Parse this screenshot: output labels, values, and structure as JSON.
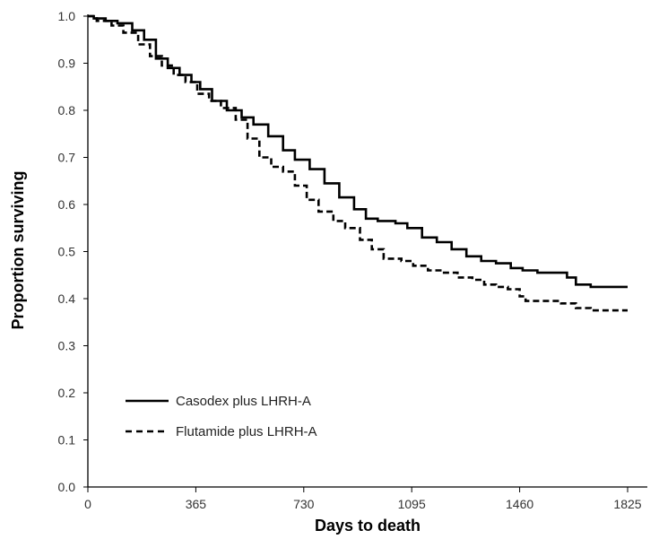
{
  "chart_data": {
    "type": "line",
    "xlabel": "Days to death",
    "ylabel": "Proportion surviving",
    "xlim": [
      0,
      1825
    ],
    "ylim": [
      0,
      1.0
    ],
    "x_ticks": [
      0,
      365,
      730,
      1095,
      1460,
      1825
    ],
    "y_ticks": [
      0.0,
      0.1,
      0.2,
      0.3,
      0.4,
      0.5,
      0.6,
      0.7,
      0.8,
      0.9,
      1.0
    ],
    "y_tick_labels": [
      "0.0",
      "0.1",
      "0.2",
      "0.3",
      "0.4",
      "0.5",
      "0.6",
      "0.7",
      "0.8",
      "0.9",
      "1.0"
    ],
    "grid": false,
    "legend_position": "bottom-left",
    "series": [
      {
        "name": "Casodex plus LHRH-A",
        "style": "solid",
        "color": "#000000",
        "x": [
          0,
          20,
          60,
          100,
          150,
          190,
          230,
          270,
          310,
          350,
          380,
          420,
          470,
          520,
          560,
          610,
          660,
          700,
          750,
          800,
          850,
          900,
          940,
          980,
          1040,
          1080,
          1130,
          1180,
          1230,
          1280,
          1330,
          1380,
          1430,
          1470,
          1520,
          1560,
          1620,
          1650,
          1700,
          1760,
          1825
        ],
        "y": [
          1.0,
          0.995,
          0.99,
          0.985,
          0.97,
          0.95,
          0.91,
          0.89,
          0.875,
          0.86,
          0.845,
          0.82,
          0.8,
          0.785,
          0.77,
          0.745,
          0.715,
          0.695,
          0.675,
          0.645,
          0.615,
          0.59,
          0.57,
          0.565,
          0.56,
          0.55,
          0.53,
          0.52,
          0.505,
          0.49,
          0.48,
          0.475,
          0.465,
          0.46,
          0.455,
          0.455,
          0.445,
          0.43,
          0.425,
          0.425,
          0.425
        ]
      },
      {
        "name": "Flutamide plus LHRH-A",
        "style": "dashed",
        "color": "#000000",
        "x": [
          0,
          30,
          80,
          120,
          170,
          210,
          250,
          290,
          330,
          370,
          410,
          450,
          500,
          540,
          580,
          620,
          660,
          700,
          740,
          780,
          830,
          870,
          920,
          960,
          1000,
          1060,
          1100,
          1150,
          1200,
          1250,
          1300,
          1340,
          1380,
          1420,
          1460,
          1480,
          1530,
          1600,
          1650,
          1700,
          1825
        ],
        "y": [
          1.0,
          0.99,
          0.98,
          0.965,
          0.94,
          0.915,
          0.895,
          0.875,
          0.86,
          0.835,
          0.82,
          0.805,
          0.78,
          0.74,
          0.7,
          0.68,
          0.67,
          0.64,
          0.61,
          0.585,
          0.565,
          0.55,
          0.525,
          0.505,
          0.485,
          0.48,
          0.47,
          0.46,
          0.455,
          0.445,
          0.44,
          0.43,
          0.425,
          0.42,
          0.405,
          0.395,
          0.395,
          0.39,
          0.38,
          0.375,
          0.375
        ]
      }
    ]
  }
}
